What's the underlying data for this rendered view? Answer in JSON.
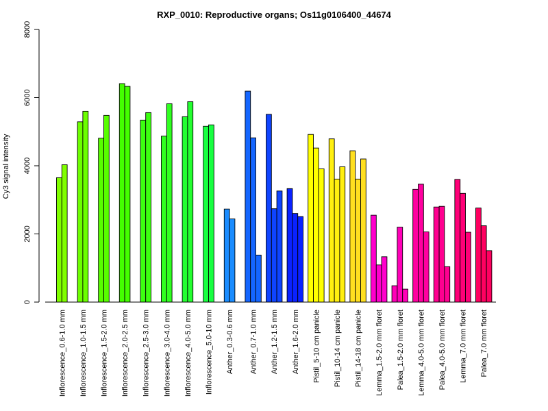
{
  "chart_data": {
    "type": "bar",
    "title": "RXP_0010: Reproductive organs; Os11g0106400_44674",
    "xlabel": "",
    "ylabel": "Cy3 signal intensity",
    "ylim": [
      0,
      8000
    ],
    "yticks": [
      0,
      2000,
      4000,
      6000,
      8000
    ],
    "grid": false,
    "legend": "none",
    "groups": [
      {
        "label": "Inflorescence_0.6-1.0 mm",
        "color": "#80ff00",
        "values": [
          3650,
          4030
        ]
      },
      {
        "label": "Inflorescence_1.0-1.5 mm",
        "color": "#6cff00",
        "values": [
          5290,
          5600
        ]
      },
      {
        "label": "Inflorescence_1.5-2.0 mm",
        "color": "#58ff00",
        "values": [
          4810,
          5480
        ]
      },
      {
        "label": "Inflorescence_2.0-2.5 mm",
        "color": "#44ff00",
        "values": [
          6410,
          6330
        ]
      },
      {
        "label": "Inflorescence_2.5-3.0 mm",
        "color": "#3cff10",
        "values": [
          5340,
          5560
        ]
      },
      {
        "label": "Inflorescence_3.0-4.0 mm",
        "color": "#30ff20",
        "values": [
          4870,
          5820
        ]
      },
      {
        "label": "Inflorescence_4.0-5.0 mm",
        "color": "#24ff30",
        "values": [
          5440,
          5880
        ]
      },
      {
        "label": "Inflorescence_5.0-10 mm",
        "color": "#18ff40",
        "values": [
          5160,
          5200
        ]
      },
      {
        "label": "Anther_0.3-0.6 mm",
        "color": "#1a8cff",
        "values": [
          2730,
          2440
        ]
      },
      {
        "label": "Anther_0.7-1.0 mm",
        "color": "#1466ff",
        "values": [
          6190,
          4820,
          1380
        ]
      },
      {
        "label": "Anther_1.2-1.5 mm",
        "color": "#0f44ff",
        "values": [
          5510,
          2740,
          3260
        ]
      },
      {
        "label": "Anther_1.6-2.0 mm",
        "color": "#0a22ff",
        "values": [
          3330,
          2600,
          2510
        ]
      },
      {
        "label": "Pistil_5-10 cm panicle",
        "color": "#ffff00",
        "values": [
          4920,
          4520,
          3910
        ]
      },
      {
        "label": "Pistil_10-14 cm panicle",
        "color": "#ffef10",
        "values": [
          4790,
          3610,
          3970
        ]
      },
      {
        "label": "Pistil_14-18 cm panicle",
        "color": "#ffdf20",
        "values": [
          4440,
          3610,
          4200
        ]
      },
      {
        "label": "Lemma_1.5-2.0 mm floret",
        "color": "#ff00cc",
        "values": [
          2550,
          1090,
          1330
        ]
      },
      {
        "label": "Palea_1.5-2.0 mm floret",
        "color": "#ff00b8",
        "values": [
          480,
          2200,
          380
        ]
      },
      {
        "label": "Lemma_4.0-5.0 mm floret",
        "color": "#ff00a0",
        "values": [
          3310,
          3460,
          2060
        ]
      },
      {
        "label": "Palea_4.0-5.0 mm floret",
        "color": "#ff0090",
        "values": [
          2790,
          2810,
          1040
        ]
      },
      {
        "label": "Lemma_7.0 mm floret",
        "color": "#ff0078",
        "values": [
          3600,
          3190,
          2050
        ]
      },
      {
        "label": "Palea_7.0 mm floret",
        "color": "#ff0060",
        "values": [
          2760,
          2240,
          1510
        ]
      }
    ]
  }
}
